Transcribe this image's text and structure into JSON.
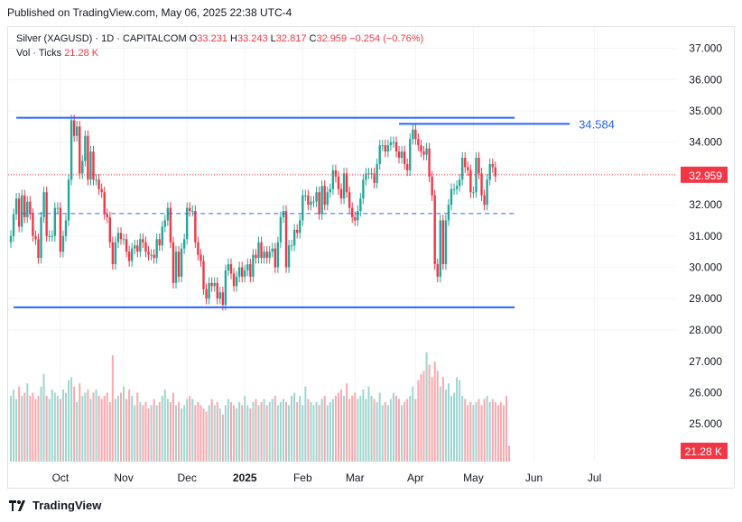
{
  "header": {
    "published": "Published on TradingView.com, May 06, 2025 22:38 UTC-4"
  },
  "legend": {
    "symbol": "Silver (XAGUSD) · 1D · CAPITALCOM",
    "o_label": "O",
    "o_value": "33.231",
    "h_label": "H",
    "h_value": "33.243",
    "l_label": "L",
    "l_value": "32.817",
    "c_label": "C",
    "c_value": "32.959",
    "change": "−0.254 (−0.76%)",
    "vol_label": "Vol · Ticks",
    "vol_value": "21.28 K"
  },
  "footer": {
    "brand": "TradingView",
    "logo_icon": "tradingview-logo-icon"
  },
  "colors": {
    "up": "#26a69a",
    "down": "#f23645",
    "up_vol": "#9fd5cf",
    "down_vol": "#f7a8ae",
    "line": "#2962ff",
    "grid": "#f0f3fa"
  },
  "chart_data": {
    "type": "candlestick",
    "title": "Silver (XAGUSD) · 1D · CAPITALCOM",
    "x_ticks": [
      "Oct",
      "Nov",
      "Dec",
      "2025",
      "Feb",
      "Mar",
      "Apr",
      "May",
      "Jun",
      "Jul"
    ],
    "x_tick_index": [
      18,
      41,
      64,
      85,
      106,
      125,
      147,
      168,
      190,
      212
    ],
    "y_ticks": [
      "37.000",
      "36.000",
      "35.000",
      "34.000",
      "33.000",
      "32.000",
      "31.000",
      "30.000",
      "29.000",
      "28.000"
    ],
    "y_tick_values": [
      37,
      36,
      35,
      34,
      33,
      32,
      31,
      30,
      29,
      28
    ],
    "vol_ticks": [
      "27.000",
      "26.000",
      "25.000"
    ],
    "vol_tick_values": [
      27,
      26,
      25
    ],
    "last_price": 32.959,
    "last_price_label": "32.959",
    "last_volume_label": "21.28 K",
    "horizontal_lines": [
      {
        "name": "resistance-top",
        "price": 34.78,
        "from": 2,
        "to": 183
      },
      {
        "name": "resistance-april",
        "price": 34.584,
        "from": 141,
        "to": 203,
        "label": "34.584"
      },
      {
        "name": "support-bottom",
        "price": 28.72,
        "from": 1,
        "to": 183
      },
      {
        "name": "mid-dashed",
        "price": 31.72,
        "from": 4,
        "to": 183,
        "dashed": true
      }
    ],
    "closes": [
      31.0,
      31.7,
      32.2,
      31.3,
      32.3,
      31.6,
      32.1,
      31.7,
      31.0,
      30.9,
      30.3,
      31.6,
      32.4,
      31.0,
      31.0,
      31.0,
      31.9,
      31.9,
      30.5,
      31.0,
      31.5,
      32.8,
      34.7,
      34.2,
      34.5,
      33.0,
      33.4,
      34.2,
      32.8,
      33.7,
      32.8,
      32.8,
      32.5,
      32.4,
      31.7,
      31.6,
      30.8,
      30.1,
      30.8,
      31.1,
      30.9,
      30.9,
      30.5,
      30.2,
      30.6,
      30.7,
      30.5,
      30.9,
      30.8,
      30.5,
      30.4,
      30.4,
      30.3,
      30.9,
      30.7,
      31.3,
      31.5,
      31.9,
      30.8,
      29.5,
      30.5,
      29.7,
      30.6,
      30.9,
      31.9,
      31.8,
      31.8,
      30.8,
      30.4,
      30.2,
      29.3,
      29.0,
      29.5,
      29.4,
      29.5,
      29.0,
      29.2,
      28.8,
      29.9,
      30.1,
      29.8,
      29.4,
      29.7,
      30.0,
      29.7,
      29.9,
      30.1,
      29.7,
      30.4,
      30.3,
      30.8,
      30.3,
      30.5,
      30.3,
      30.5,
      30.6,
      30.0,
      30.8,
      31.6,
      31.8,
      30.0,
      30.7,
      30.7,
      31.2,
      31.1,
      31.5,
      32.3,
      32.3,
      32.0,
      32.1,
      32.1,
      32.4,
      31.7,
      32.6,
      32.0,
      32.4,
      32.5,
      33.1,
      32.9,
      32.5,
      32.2,
      33.0,
      32.4,
      31.9,
      31.6,
      31.5,
      31.8,
      32.2,
      32.8,
      33.0,
      33.0,
      33.0,
      32.7,
      33.3,
      33.9,
      33.9,
      33.7,
      33.9,
      34.0,
      34.0,
      33.7,
      33.5,
      33.7,
      33.3,
      33.1,
      34.1,
      34.4,
      34.1,
      33.9,
      33.7,
      33.6,
      33.8,
      32.9,
      32.3,
      30.1,
      29.7,
      31.5,
      30.1,
      31.5,
      32.0,
      32.5,
      32.5,
      32.6,
      32.8,
      33.5,
      33.2,
      33.1,
      32.4,
      32.4,
      33.5,
      33.0,
      32.3,
      32.0,
      32.8,
      33.3,
      33.2,
      32.9
    ],
    "volumes": [
      25.9,
      26.1,
      25.8,
      26.2,
      25.9,
      26.0,
      26.3,
      25.9,
      26.0,
      25.8,
      25.9,
      26.2,
      26.6,
      25.9,
      25.8,
      26.1,
      26.0,
      25.9,
      25.8,
      26.1,
      26.0,
      26.4,
      26.5,
      26.2,
      25.7,
      26.3,
      25.9,
      26.0,
      26.1,
      25.8,
      26.0,
      26.1,
      25.9,
      25.8,
      25.9,
      26.0,
      25.7,
      27.2,
      25.8,
      25.9,
      26.0,
      26.2,
      25.8,
      26.1,
      25.9,
      25.6,
      26.0,
      25.7,
      25.6,
      25.7,
      25.5,
      25.6,
      25.8,
      25.6,
      25.7,
      25.9,
      26.1,
      25.8,
      25.7,
      26.0,
      25.6,
      25.7,
      25.5,
      25.6,
      25.8,
      25.9,
      25.8,
      25.6,
      25.7,
      25.6,
      25.5,
      25.4,
      25.6,
      25.8,
      25.6,
      25.7,
      25.5,
      25.3,
      25.6,
      25.8,
      25.7,
      25.6,
      25.5,
      25.7,
      25.6,
      25.9,
      25.6,
      25.5,
      25.7,
      25.8,
      25.6,
      25.7,
      25.8,
      25.6,
      25.7,
      25.8,
      25.9,
      25.6,
      25.7,
      25.8,
      25.7,
      25.6,
      25.9,
      26.0,
      25.7,
      25.9,
      25.6,
      26.2,
      25.8,
      25.7,
      25.6,
      25.7,
      25.6,
      25.8,
      25.9,
      25.6,
      25.7,
      25.8,
      25.9,
      26.0,
      26.1,
      25.9,
      26.3,
      25.8,
      25.9,
      26.0,
      25.8,
      25.9,
      26.1,
      25.8,
      26.2,
      25.9,
      25.8,
      25.7,
      26.0,
      25.6,
      25.7,
      25.6,
      25.8,
      26.0,
      25.9,
      25.8,
      25.6,
      25.7,
      25.8,
      25.9,
      26.2,
      25.8,
      26.4,
      26.6,
      26.7,
      27.3,
      26.9,
      26.5,
      27.0,
      26.7,
      26.2,
      26.5,
      26.1,
      26.3,
      25.9,
      26.0,
      26.5,
      26.4,
      25.9,
      25.8,
      25.6,
      25.7,
      25.6,
      25.7,
      25.8,
      25.6,
      25.8,
      25.9,
      25.7,
      25.8,
      25.7,
      25.6,
      25.7,
      25.6,
      25.9,
      24.3
    ]
  }
}
